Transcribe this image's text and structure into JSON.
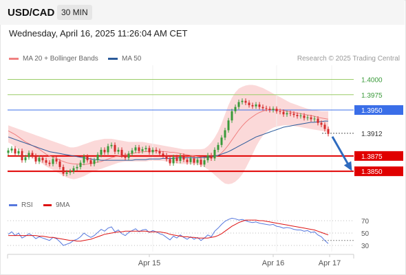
{
  "header": {
    "pair": "USD/CAD",
    "timeframe": "30 MIN",
    "datetime": "Wednesday, April 16, 2025 11:26:04 AM CET"
  },
  "legend_main": [
    {
      "label": "MA 20 + Bollinger Bands",
      "color": "#f08080"
    },
    {
      "label": "MA 50",
      "color": "#2a5a9a"
    }
  ],
  "legend_rsi": [
    {
      "label": "RSI",
      "color": "#5577dd"
    },
    {
      "label": "9MA",
      "color": "#dd1111"
    }
  ],
  "copyright": "Research © 2025 Trading Central",
  "colors": {
    "bull": "#3a9a3a",
    "bear": "#d42a2a",
    "bollinger_fill": "#fbd5d5",
    "ma20": "#f08080",
    "ma50": "#2a5a9a",
    "resistance": "#99cc66",
    "pivot": "#3a6ee8",
    "support": "#e00000",
    "arrow": "#2e6bbf"
  },
  "chart_data": {
    "type": "candlestick",
    "x_labels": [
      "Apr 15",
      "Apr 16",
      "Apr 17"
    ],
    "ylim": [
      1.3812,
      1.4023
    ],
    "levels": [
      {
        "value": 1.4,
        "label": "1.4000",
        "kind": "resistance"
      },
      {
        "value": 1.3975,
        "label": "1.3975",
        "kind": "resistance"
      },
      {
        "value": 1.395,
        "label": "1.3950",
        "kind": "pivot"
      },
      {
        "value": 1.3912,
        "label": "1.3912",
        "kind": "current"
      },
      {
        "value": 1.3875,
        "label": "1.3875",
        "kind": "support"
      },
      {
        "value": 1.385,
        "label": "1.3850",
        "kind": "support"
      }
    ],
    "close": [
      1.3884,
      1.3887,
      1.3879,
      1.3883,
      1.3868,
      1.3873,
      1.388,
      1.3875,
      1.3866,
      1.3872,
      1.3868,
      1.3864,
      1.3862,
      1.387,
      1.3866,
      1.3857,
      1.3846,
      1.3848,
      1.385,
      1.3855,
      1.3857,
      1.3864,
      1.3874,
      1.3868,
      1.3862,
      1.3868,
      1.3877,
      1.3885,
      1.3881,
      1.3891,
      1.3893,
      1.3882,
      1.3885,
      1.3876,
      1.3872,
      1.3879,
      1.3884,
      1.3889,
      1.3883,
      1.3886,
      1.3888,
      1.3881,
      1.3885,
      1.3883,
      1.3879,
      1.3876,
      1.387,
      1.3863,
      1.3873,
      1.3867,
      1.3875,
      1.3869,
      1.3865,
      1.3871,
      1.3864,
      1.3869,
      1.3861,
      1.3868,
      1.3876,
      1.3871,
      1.3885,
      1.3893,
      1.3905,
      1.3917,
      1.3933,
      1.3948,
      1.3955,
      1.3963,
      1.3965,
      1.3962,
      1.3958,
      1.3956,
      1.3959,
      1.3955,
      1.3953,
      1.3952,
      1.395,
      1.3952,
      1.3948,
      1.3947,
      1.3943,
      1.3945,
      1.3944,
      1.3942,
      1.394,
      1.3941,
      1.3937,
      1.3938,
      1.3935,
      1.3936,
      1.3929,
      1.3926,
      1.3919,
      1.3911
    ],
    "ma20": [
      1.3916,
      1.3913,
      1.391,
      1.3906,
      1.3902,
      1.3898,
      1.3895,
      1.3892,
      1.3889,
      1.3886,
      1.3882,
      1.3878,
      1.3875,
      1.3873,
      1.3871,
      1.3868,
      1.3866,
      1.3864,
      1.3863,
      1.3862,
      1.3862,
      1.3861,
      1.3861,
      1.3862,
      1.3863,
      1.3864,
      1.3865,
      1.3866,
      1.3868,
      1.387,
      1.3872,
      1.3874,
      1.3875,
      1.3876,
      1.3877,
      1.3878,
      1.3879,
      1.388,
      1.3881,
      1.3882,
      1.3882,
      1.3883,
      1.3883,
      1.3883,
      1.3883,
      1.3882,
      1.3882,
      1.3881,
      1.3881,
      1.388,
      1.3879,
      1.3878,
      1.3877,
      1.3876,
      1.3875,
      1.3874,
      1.3873,
      1.3872,
      1.3872,
      1.3872,
      1.3874,
      1.3876,
      1.388,
      1.3886,
      1.3893,
      1.3901,
      1.3909,
      1.3917,
      1.3924,
      1.393,
      1.3935,
      1.3939,
      1.3943,
      1.3946,
      1.3948,
      1.395,
      1.3951,
      1.3951,
      1.3951,
      1.395,
      1.3949,
      1.3948,
      1.3947,
      1.3946,
      1.3945,
      1.3944,
      1.3943,
      1.3942,
      1.3941,
      1.394,
      1.3938,
      1.3937,
      1.3936,
      1.3935
    ],
    "band_upper": [
      1.3925,
      1.3923,
      1.3921,
      1.3919,
      1.3917,
      1.3915,
      1.3913,
      1.3911,
      1.3909,
      1.3907,
      1.3905,
      1.3903,
      1.3901,
      1.3899,
      1.3897,
      1.3895,
      1.3893,
      1.3891,
      1.3889,
      1.3889,
      1.389,
      1.3892,
      1.3894,
      1.3896,
      1.3898,
      1.39,
      1.3901,
      1.3902,
      1.3903,
      1.3903,
      1.3903,
      1.3902,
      1.3901,
      1.39,
      1.3899,
      1.3898,
      1.3898,
      1.3898,
      1.3898,
      1.3898,
      1.3897,
      1.3896,
      1.3895,
      1.3894,
      1.3893,
      1.3892,
      1.3891,
      1.389,
      1.3889,
      1.3888,
      1.3887,
      1.3886,
      1.3886,
      1.3886,
      1.3886,
      1.3886,
      1.3886,
      1.3887,
      1.3891,
      1.3897,
      1.3905,
      1.3915,
      1.3928,
      1.3943,
      1.3958,
      1.397,
      1.3979,
      1.3985,
      1.3988,
      1.399,
      1.3991,
      1.3991,
      1.399,
      1.3988,
      1.3986,
      1.3983,
      1.398,
      1.3977,
      1.3974,
      1.3971,
      1.3968,
      1.3965,
      1.3962,
      1.396,
      1.3958,
      1.3956,
      1.3954,
      1.3952,
      1.3951,
      1.395,
      1.3949,
      1.3948,
      1.3948,
      1.3948
    ],
    "band_lower": [
      1.3897,
      1.3894,
      1.389,
      1.3886,
      1.3882,
      1.3878,
      1.3875,
      1.3872,
      1.3869,
      1.3866,
      1.3862,
      1.3858,
      1.3855,
      1.3852,
      1.3849,
      1.3846,
      1.3843,
      1.384,
      1.3838,
      1.3837,
      1.3838,
      1.384,
      1.3842,
      1.3845,
      1.3848,
      1.385,
      1.3852,
      1.3854,
      1.3856,
      1.3858,
      1.386,
      1.3862,
      1.3864,
      1.3865,
      1.3866,
      1.3866,
      1.3866,
      1.3866,
      1.3866,
      1.3866,
      1.3866,
      1.3867,
      1.3867,
      1.3867,
      1.3867,
      1.3867,
      1.3866,
      1.3865,
      1.3864,
      1.3863,
      1.3862,
      1.3862,
      1.3862,
      1.3862,
      1.3862,
      1.3861,
      1.386,
      1.3857,
      1.3853,
      1.3849,
      1.3844,
      1.3839,
      1.3834,
      1.383,
      1.3829,
      1.383,
      1.3833,
      1.3838,
      1.3845,
      1.3855,
      1.3866,
      1.3878,
      1.389,
      1.39,
      1.3908,
      1.3914,
      1.3918,
      1.3921,
      1.3923,
      1.3924,
      1.3925,
      1.3925,
      1.3925,
      1.3924,
      1.3923,
      1.3922,
      1.3921,
      1.392,
      1.3919,
      1.3918,
      1.3917,
      1.3916,
      1.3915,
      1.3914
    ],
    "ma50": [
      1.3906,
      1.3904,
      1.3902,
      1.39,
      1.3898,
      1.3896,
      1.3894,
      1.3892,
      1.389,
      1.3888,
      1.3886,
      1.3884,
      1.3882,
      1.3881,
      1.388,
      1.3879,
      1.3878,
      1.3877,
      1.3876,
      1.3875,
      1.3874,
      1.3873,
      1.3872,
      1.3871,
      1.387,
      1.3869,
      1.3869,
      1.3868,
      1.3868,
      1.3868,
      1.3868,
      1.3868,
      1.3868,
      1.3868,
      1.3868,
      1.3868,
      1.3868,
      1.3869,
      1.3869,
      1.3869,
      1.3869,
      1.387,
      1.387,
      1.387,
      1.387,
      1.3871,
      1.3871,
      1.3871,
      1.3871,
      1.3872,
      1.3872,
      1.3872,
      1.3872,
      1.3872,
      1.3872,
      1.3872,
      1.3872,
      1.3873,
      1.3873,
      1.3874,
      1.3875,
      1.3876,
      1.3878,
      1.388,
      1.3882,
      1.3885,
      1.3888,
      1.3891,
      1.3894,
      1.3897,
      1.39,
      1.3903,
      1.3906,
      1.3908,
      1.391,
      1.3912,
      1.3914,
      1.3916,
      1.3918,
      1.392,
      1.3922,
      1.3923,
      1.3924,
      1.3925,
      1.3926,
      1.3927,
      1.3928,
      1.3929,
      1.393,
      1.393,
      1.3931,
      1.3931,
      1.3932,
      1.3932
    ],
    "forecast_target": 1.385,
    "rsi": {
      "ticks": [
        70,
        50,
        30
      ],
      "ylim": [
        20,
        80
      ],
      "rsi": [
        48,
        52,
        46,
        50,
        42,
        45,
        49,
        46,
        41,
        44,
        42,
        40,
        38,
        43,
        41,
        36,
        30,
        32,
        34,
        38,
        40,
        44,
        50,
        46,
        43,
        46,
        51,
        56,
        53,
        58,
        60,
        52,
        55,
        49,
        46,
        51,
        54,
        57,
        52,
        55,
        56,
        51,
        54,
        52,
        49,
        47,
        43,
        39,
        45,
        42,
        47,
        43,
        40,
        44,
        40,
        43,
        38,
        42,
        47,
        44,
        53,
        58,
        64,
        69,
        72,
        74,
        73,
        71,
        72,
        70,
        68,
        67,
        68,
        66,
        65,
        64,
        63,
        64,
        61,
        60,
        58,
        59,
        58,
        56,
        55,
        55,
        53,
        54,
        51,
        52,
        47,
        44,
        38,
        33
      ],
      "ma9": [
        46,
        46,
        46,
        46,
        46,
        46,
        46,
        46,
        46,
        45,
        45,
        44,
        43,
        43,
        42,
        41,
        40,
        39,
        38,
        38,
        37,
        37,
        38,
        39,
        40,
        42,
        44,
        46,
        48,
        49,
        50,
        51,
        52,
        52,
        53,
        53,
        53,
        53,
        53,
        53,
        53,
        52,
        52,
        52,
        52,
        51,
        50,
        48,
        47,
        46,
        45,
        44,
        44,
        43,
        43,
        42,
        42,
        42,
        42,
        43,
        44,
        46,
        49,
        53,
        57,
        61,
        64,
        67,
        69,
        71,
        71,
        71,
        71,
        70,
        70,
        69,
        68,
        67,
        66,
        65,
        64,
        63,
        62,
        61,
        60,
        59,
        58,
        57,
        56,
        55,
        53,
        51,
        49,
        47
      ]
    }
  }
}
